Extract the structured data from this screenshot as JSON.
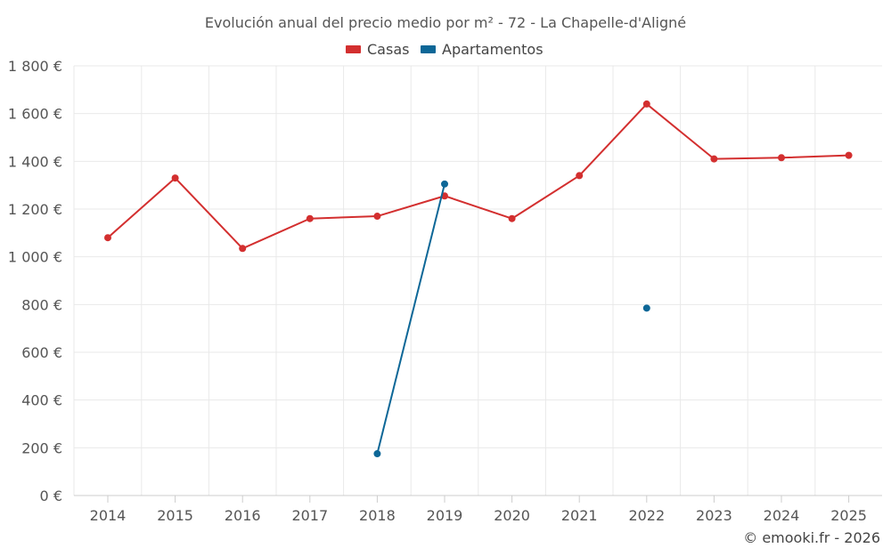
{
  "chart_data": {
    "type": "line",
    "title": "Evolución anual del precio medio por m² - 72 - La Chapelle-d'Aligné",
    "categories": [
      "2014",
      "2015",
      "2016",
      "2017",
      "2018",
      "2019",
      "2020",
      "2021",
      "2022",
      "2023",
      "2024",
      "2025"
    ],
    "y_ticks": [
      "0 €",
      "200 €",
      "400 €",
      "600 €",
      "800 €",
      "1 000 €",
      "1 200 €",
      "1 400 €",
      "1 600 €",
      "1 800 €"
    ],
    "ylim": [
      0,
      1800
    ],
    "grid": true,
    "legend_position": "top-center",
    "series": [
      {
        "name": "Casas",
        "color": "#d32f2f",
        "values": [
          1080,
          1330,
          1035,
          1160,
          1170,
          1255,
          1160,
          1340,
          1640,
          1410,
          1415,
          1425
        ]
      },
      {
        "name": "Apartamentos",
        "color": "#0d6797",
        "values": [
          null,
          null,
          null,
          null,
          175,
          1305,
          null,
          null,
          785,
          null,
          null,
          null
        ]
      }
    ],
    "credit": "© emooki.fr - 2026"
  }
}
